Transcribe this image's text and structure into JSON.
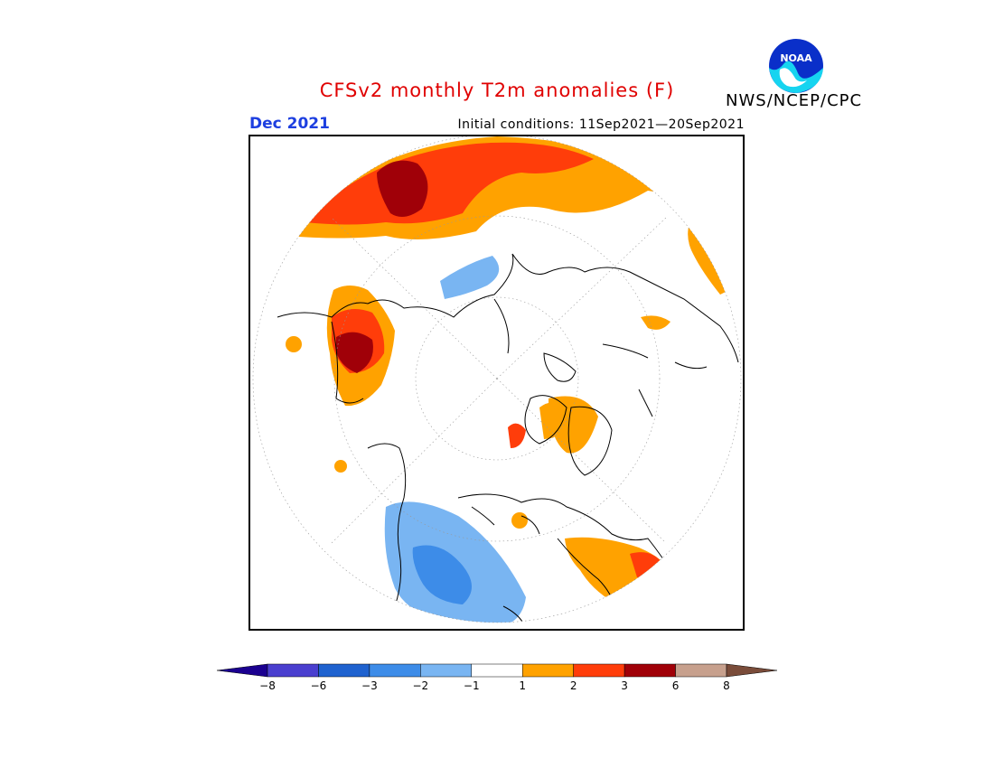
{
  "header": {
    "title": "CFSv2 monthly T2m anomalies (F)",
    "month": "Dec 2021",
    "initial_conditions": "Initial conditions: 11Sep2021—20Sep2021",
    "agency": "NWS/NCEP/CPC",
    "logo_text": "NOAA"
  },
  "colors": {
    "accent_title": "#e00000",
    "month_label": "#1d3fe0"
  },
  "legend": {
    "bins": [
      {
        "color": "#1b0090"
      },
      {
        "color": "#4a3fcf"
      },
      {
        "color": "#1f62cf"
      },
      {
        "color": "#3d8ce8"
      },
      {
        "color": "#79b5f2"
      },
      {
        "color": "#ffffff"
      },
      {
        "color": "#ffa200"
      },
      {
        "color": "#ff3d0a"
      },
      {
        "color": "#a00008"
      },
      {
        "color": "#c7a08d"
      },
      {
        "color": "#7a4c3a"
      }
    ],
    "tick_labels": [
      "−8",
      "−6",
      "−3",
      "−2",
      "−1",
      "1",
      "2",
      "3",
      "6",
      "8"
    ]
  }
}
